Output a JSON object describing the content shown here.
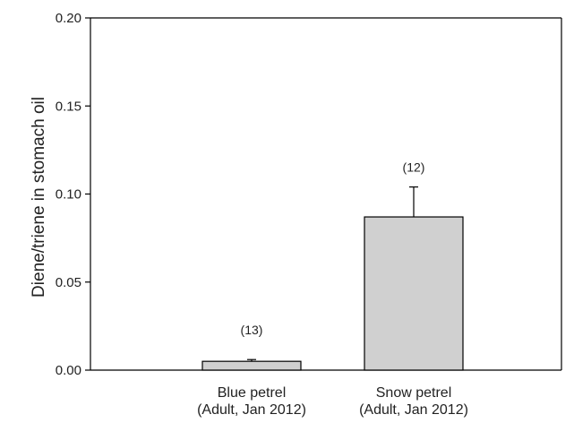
{
  "chart_data": {
    "type": "bar",
    "categories": [
      [
        "Blue petrel",
        "(Adult, Jan 2012)"
      ],
      [
        "Snow petrel",
        "(Adult, Jan 2012)"
      ]
    ],
    "values": [
      0.005,
      0.087
    ],
    "error_upper": [
      0.006,
      0.104
    ],
    "annotations": [
      "(13)",
      "(12)"
    ],
    "title": "",
    "xlabel": "",
    "ylabel": "Diene/triene in stomach oil",
    "ylim": [
      0,
      0.2
    ],
    "yticks": [
      "0.00",
      "0.05",
      "0.10",
      "0.15",
      "0.20"
    ],
    "bar_color": "#d0d0d0",
    "grid": false,
    "legend": "none"
  }
}
